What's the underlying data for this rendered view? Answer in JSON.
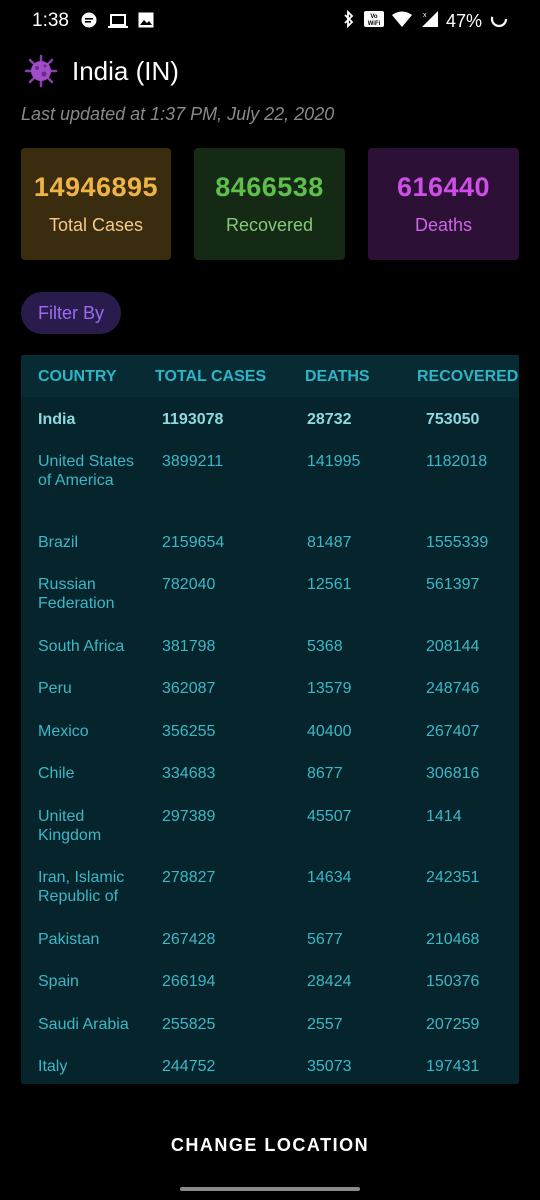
{
  "status_bar": {
    "time": "1:38",
    "battery": "47%",
    "left_icons": [
      "chat-bubble-icon",
      "laptop-icon",
      "image-icon"
    ],
    "right_icons": [
      "bluetooth-icon",
      "vowifi-icon",
      "wifi-icon",
      "signal-icon",
      "battery-ring-icon"
    ]
  },
  "header": {
    "title": "India (IN)",
    "icon": "virus-icon"
  },
  "updated_text": "Last updated at 1:37 PM, July 22, 2020",
  "stats": {
    "total": {
      "value": "14946895",
      "label": "Total Cases"
    },
    "recovered": {
      "value": "8466538",
      "label": "Recovered"
    },
    "deaths": {
      "value": "616440",
      "label": "Deaths"
    }
  },
  "filter_label": "Filter By",
  "table": {
    "headers": {
      "country": "COUNTRY",
      "total": "TOTAL CASES",
      "deaths": "DEATHS",
      "recovered": "RECOVERED"
    },
    "rows": [
      {
        "country": "India",
        "total": "1193078",
        "deaths": "28732",
        "recovered": "753050",
        "highlight": true
      },
      {
        "country": "United States of America",
        "total": "3899211",
        "deaths": "141995",
        "recovered": "1182018"
      },
      {
        "country": "Brazil",
        "total": "2159654",
        "deaths": "81487",
        "recovered": "1555339"
      },
      {
        "country": "Russian Federation",
        "total": "782040",
        "deaths": "12561",
        "recovered": "561397"
      },
      {
        "country": "South Africa",
        "total": "381798",
        "deaths": "5368",
        "recovered": "208144"
      },
      {
        "country": "Peru",
        "total": "362087",
        "deaths": "13579",
        "recovered": "248746"
      },
      {
        "country": "Mexico",
        "total": "356255",
        "deaths": "40400",
        "recovered": "267407"
      },
      {
        "country": "Chile",
        "total": "334683",
        "deaths": "8677",
        "recovered": "306816"
      },
      {
        "country": "United Kingdom",
        "total": "297389",
        "deaths": "45507",
        "recovered": "1414"
      },
      {
        "country": "Iran, Islamic Republic of",
        "total": "278827",
        "deaths": "14634",
        "recovered": "242351"
      },
      {
        "country": "Pakistan",
        "total": "267428",
        "deaths": "5677",
        "recovered": "210468"
      },
      {
        "country": "Spain",
        "total": "266194",
        "deaths": "28424",
        "recovered": "150376"
      },
      {
        "country": "Saudi Arabia",
        "total": "255825",
        "deaths": "2557",
        "recovered": "207259"
      },
      {
        "country": "Italy",
        "total": "244752",
        "deaths": "35073",
        "recovered": "197431"
      }
    ]
  },
  "change_location_label": "CHANGE LOCATION",
  "colors": {
    "background": "#000000",
    "total_accent": "#f0b445",
    "recovered_accent": "#5fbf4b",
    "deaths_accent": "#d04ee8",
    "table_text": "#3bb8c8",
    "filter_text": "#9a6cf2"
  }
}
